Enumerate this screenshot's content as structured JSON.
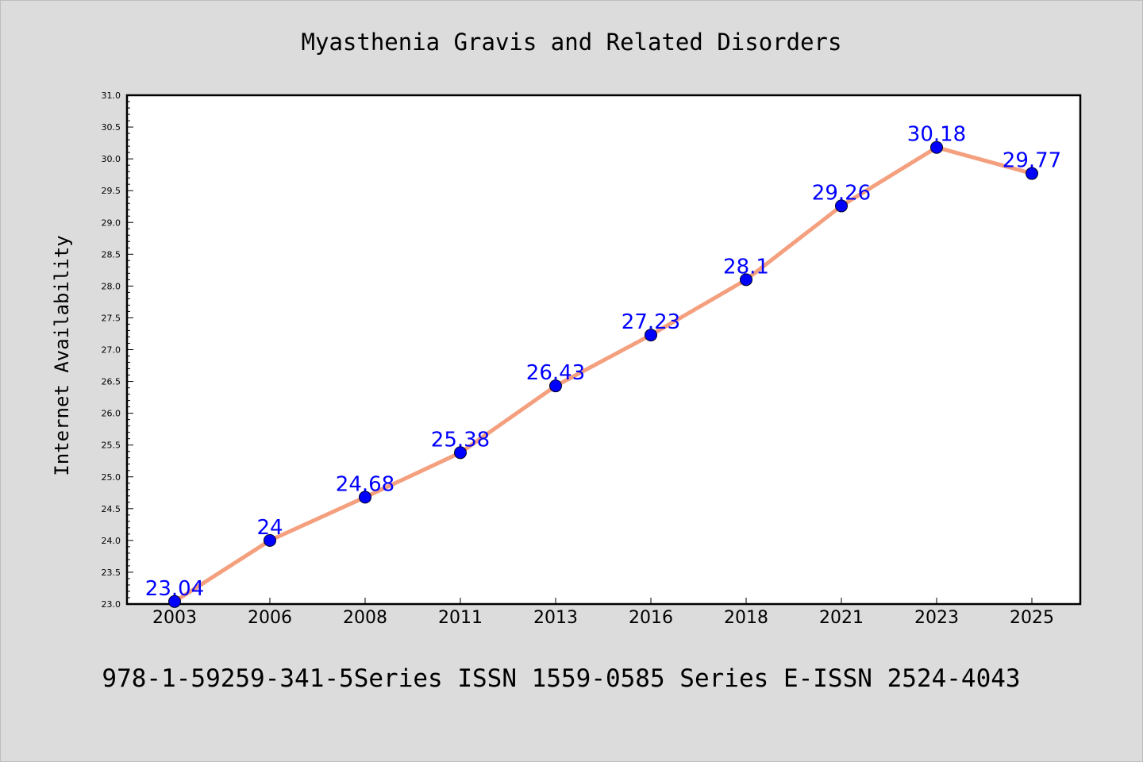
{
  "colors": {
    "background": "#dcdcdc",
    "plot_background": "#ffffff",
    "line": "#f4a07e",
    "marker": "#0000ff",
    "data_label": "#0000ff",
    "axis": "#000000"
  },
  "footer": {
    "text": "978-1-59259-341-5Series ISSN 1559-0585 Series E-ISSN 2524-4043"
  },
  "chart_data": {
    "type": "line",
    "title": "Myasthenia Gravis and Related Disorders",
    "xlabel": "",
    "ylabel": "Internet Availability",
    "categories": [
      "2003",
      "2006",
      "2008",
      "2011",
      "2013",
      "2016",
      "2018",
      "2021",
      "2023",
      "2025"
    ],
    "series": [
      {
        "values": [
          23.04,
          24,
          24.68,
          25.38,
          26.43,
          27.23,
          28.1,
          29.26,
          30.18,
          29.77
        ]
      }
    ],
    "data_labels": [
      "23.04",
      "24",
      "24.68",
      "25.38",
      "26.43",
      "27.23",
      "28.1",
      "29.26",
      "30.18",
      "29.77"
    ],
    "ylim": [
      23.0,
      31.0
    ],
    "yticks": [
      "23.0",
      "23.5",
      "24.0",
      "24.5",
      "25.0",
      "25.5",
      "26.0",
      "26.5",
      "27.0",
      "27.5",
      "28.0",
      "28.5",
      "29.0",
      "29.5",
      "30.0",
      "30.5",
      "31.0"
    ],
    "grid": false,
    "legend": "none"
  }
}
